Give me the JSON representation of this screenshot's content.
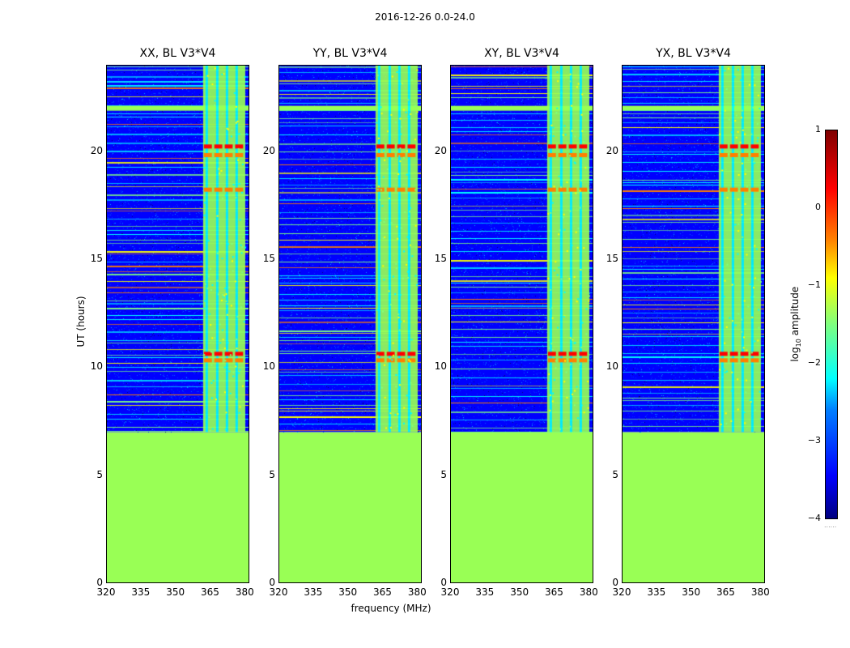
{
  "suptitle": "2016-12-26 0.0-24.0",
  "chart_data": {
    "type": "heatmap",
    "panels": [
      {
        "title": "XX, BL V3*V4"
      },
      {
        "title": "YY, BL V3*V4"
      },
      {
        "title": "XY, BL V3*V4"
      },
      {
        "title": "YX, BL V3*V4"
      }
    ],
    "xlabel": "frequency (MHz)",
    "ylabel": "UT (hours)",
    "xlim": [
      320,
      382
    ],
    "ylim": [
      0,
      24
    ],
    "x_ticks": [
      "320",
      "335",
      "350",
      "365",
      "380"
    ],
    "y_ticks": [
      "0",
      "5",
      "10",
      "15",
      "20"
    ],
    "no_data_below_hour": 7,
    "rfi_band_mhz": [
      362,
      380
    ],
    "colorbar": {
      "label": "log10 amplitude",
      "label_main": "log",
      "label_sub": "10",
      "label_rest": " amplitude",
      "range": [
        -4,
        1
      ],
      "ticks": [
        "1",
        "0",
        "−1",
        "−2",
        "−3",
        "−4"
      ],
      "extend_marker": "......",
      "colors": [
        "#00007f",
        "#0000ff",
        "#007fff",
        "#00ffff",
        "#7fff7f",
        "#ffff00",
        "#ff7f00",
        "#ff0000",
        "#7f0000"
      ]
    }
  }
}
